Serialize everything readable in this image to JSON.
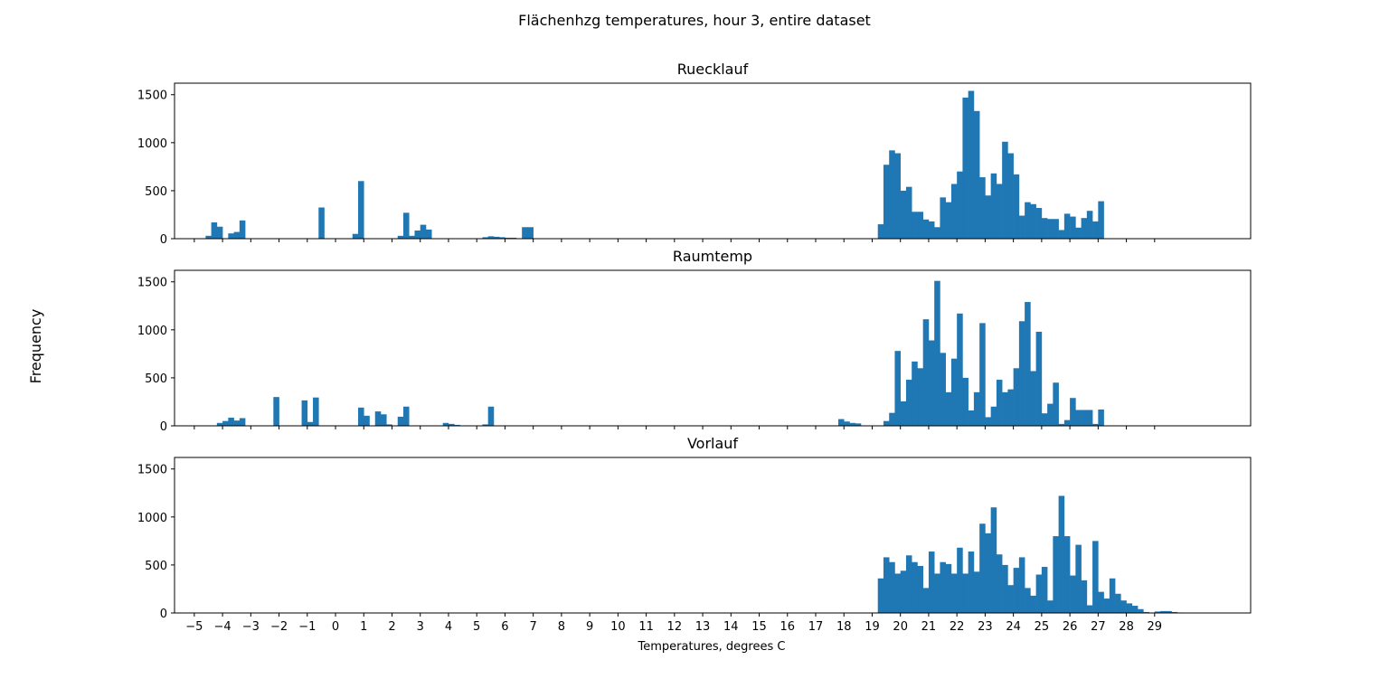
{
  "figure": {
    "suptitle": "Flächenhzg temperatures, hour 3, entire dataset",
    "ylabel": "Frequency",
    "xlabel": "Temperatures, degrees C"
  },
  "colors": {
    "bar": "#1f77b4",
    "axes": "#000000",
    "background": "#ffffff"
  },
  "chart_data": [
    {
      "type": "bar",
      "title": "Ruecklauf",
      "bin_width": 0.2,
      "xlim": [
        -5.7,
        32.4
      ],
      "ylim": [
        0,
        1620
      ],
      "yticks": [
        0,
        500,
        1000,
        1500
      ],
      "show_x_tick_labels": false,
      "bins": [
        [
          -4.6,
          30
        ],
        [
          -4.4,
          170
        ],
        [
          -4.2,
          125
        ],
        [
          -3.8,
          55
        ],
        [
          -3.6,
          70
        ],
        [
          -3.4,
          190
        ],
        [
          -0.6,
          325
        ],
        [
          0.6,
          50
        ],
        [
          0.8,
          600
        ],
        [
          2.2,
          30
        ],
        [
          2.4,
          270
        ],
        [
          2.6,
          30
        ],
        [
          2.8,
          85
        ],
        [
          3.0,
          145
        ],
        [
          3.2,
          95
        ],
        [
          5.2,
          15
        ],
        [
          5.4,
          25
        ],
        [
          5.6,
          20
        ],
        [
          5.8,
          15
        ],
        [
          6.0,
          10
        ],
        [
          6.2,
          10
        ],
        [
          6.6,
          120
        ],
        [
          6.8,
          120
        ],
        [
          19.2,
          150
        ],
        [
          19.4,
          770
        ],
        [
          19.6,
          920
        ],
        [
          19.8,
          890
        ],
        [
          20.0,
          500
        ],
        [
          20.2,
          540
        ],
        [
          20.4,
          280
        ],
        [
          20.6,
          280
        ],
        [
          20.8,
          200
        ],
        [
          21.0,
          180
        ],
        [
          21.2,
          120
        ],
        [
          21.4,
          430
        ],
        [
          21.6,
          380
        ],
        [
          21.8,
          570
        ],
        [
          22.0,
          700
        ],
        [
          22.2,
          1470
        ],
        [
          22.4,
          1540
        ],
        [
          22.6,
          1330
        ],
        [
          22.8,
          640
        ],
        [
          23.0,
          450
        ],
        [
          23.2,
          680
        ],
        [
          23.4,
          570
        ],
        [
          23.6,
          1010
        ],
        [
          23.8,
          890
        ],
        [
          24.0,
          670
        ],
        [
          24.2,
          240
        ],
        [
          24.4,
          380
        ],
        [
          24.6,
          360
        ],
        [
          24.8,
          320
        ],
        [
          25.0,
          215
        ],
        [
          25.2,
          205
        ],
        [
          25.4,
          205
        ],
        [
          25.6,
          90
        ],
        [
          25.8,
          260
        ],
        [
          26.0,
          230
        ],
        [
          26.2,
          115
        ],
        [
          26.4,
          215
        ],
        [
          26.6,
          290
        ],
        [
          26.8,
          180
        ],
        [
          27.0,
          390
        ]
      ]
    },
    {
      "type": "bar",
      "title": "Raumtemp",
      "bin_width": 0.2,
      "xlim": [
        -5.7,
        32.4
      ],
      "ylim": [
        0,
        1620
      ],
      "yticks": [
        0,
        500,
        1000,
        1500
      ],
      "show_x_tick_labels": false,
      "bins": [
        [
          -4.2,
          30
        ],
        [
          -4.0,
          50
        ],
        [
          -3.8,
          85
        ],
        [
          -3.6,
          55
        ],
        [
          -3.4,
          80
        ],
        [
          -2.2,
          300
        ],
        [
          -1.2,
          265
        ],
        [
          -1.0,
          40
        ],
        [
          -0.8,
          295
        ],
        [
          0.8,
          190
        ],
        [
          1.0,
          105
        ],
        [
          1.4,
          150
        ],
        [
          1.6,
          120
        ],
        [
          1.8,
          15
        ],
        [
          2.2,
          95
        ],
        [
          2.4,
          200
        ],
        [
          3.8,
          30
        ],
        [
          4.0,
          20
        ],
        [
          4.2,
          10
        ],
        [
          5.2,
          15
        ],
        [
          5.4,
          200
        ],
        [
          17.8,
          70
        ],
        [
          18.0,
          45
        ],
        [
          18.2,
          30
        ],
        [
          18.4,
          25
        ],
        [
          19.4,
          50
        ],
        [
          19.6,
          135
        ],
        [
          19.8,
          780
        ],
        [
          20.0,
          255
        ],
        [
          20.2,
          480
        ],
        [
          20.4,
          670
        ],
        [
          20.6,
          600
        ],
        [
          20.8,
          1110
        ],
        [
          21.0,
          890
        ],
        [
          21.2,
          1510
        ],
        [
          21.4,
          760
        ],
        [
          21.6,
          350
        ],
        [
          21.8,
          700
        ],
        [
          22.0,
          1170
        ],
        [
          22.2,
          500
        ],
        [
          22.4,
          160
        ],
        [
          22.6,
          350
        ],
        [
          22.8,
          1070
        ],
        [
          23.0,
          90
        ],
        [
          23.2,
          200
        ],
        [
          23.4,
          480
        ],
        [
          23.6,
          350
        ],
        [
          23.8,
          380
        ],
        [
          24.0,
          600
        ],
        [
          24.2,
          1090
        ],
        [
          24.4,
          1290
        ],
        [
          24.6,
          570
        ],
        [
          24.8,
          980
        ],
        [
          25.0,
          130
        ],
        [
          25.2,
          230
        ],
        [
          25.4,
          450
        ],
        [
          25.6,
          20
        ],
        [
          25.8,
          60
        ],
        [
          26.0,
          290
        ],
        [
          26.2,
          165
        ],
        [
          26.4,
          165
        ],
        [
          26.6,
          165
        ],
        [
          26.8,
          20
        ],
        [
          27.0,
          170
        ]
      ]
    },
    {
      "type": "bar",
      "title": "Vorlauf",
      "bin_width": 0.2,
      "xlim": [
        -5.7,
        32.4
      ],
      "ylim": [
        0,
        1620
      ],
      "yticks": [
        0,
        500,
        1000,
        1500
      ],
      "show_x_tick_labels": true,
      "xticks": [
        -5,
        -4,
        -3,
        -2,
        -1,
        0,
        1,
        2,
        3,
        4,
        5,
        6,
        7,
        8,
        9,
        10,
        11,
        12,
        13,
        14,
        15,
        16,
        17,
        18,
        19,
        20,
        21,
        22,
        23,
        24,
        25,
        26,
        27,
        28,
        29
      ],
      "bins": [
        [
          19.2,
          360
        ],
        [
          19.4,
          580
        ],
        [
          19.6,
          530
        ],
        [
          19.8,
          410
        ],
        [
          20.0,
          440
        ],
        [
          20.2,
          600
        ],
        [
          20.4,
          530
        ],
        [
          20.6,
          490
        ],
        [
          20.8,
          260
        ],
        [
          21.0,
          640
        ],
        [
          21.2,
          410
        ],
        [
          21.4,
          530
        ],
        [
          21.6,
          510
        ],
        [
          21.8,
          410
        ],
        [
          22.0,
          680
        ],
        [
          22.2,
          410
        ],
        [
          22.4,
          640
        ],
        [
          22.6,
          430
        ],
        [
          22.8,
          930
        ],
        [
          23.0,
          830
        ],
        [
          23.2,
          1100
        ],
        [
          23.4,
          610
        ],
        [
          23.6,
          500
        ],
        [
          23.8,
          290
        ],
        [
          24.0,
          470
        ],
        [
          24.2,
          580
        ],
        [
          24.4,
          260
        ],
        [
          24.6,
          180
        ],
        [
          24.8,
          400
        ],
        [
          25.0,
          480
        ],
        [
          25.2,
          130
        ],
        [
          25.4,
          800
        ],
        [
          25.6,
          1220
        ],
        [
          25.8,
          800
        ],
        [
          26.0,
          390
        ],
        [
          26.2,
          710
        ],
        [
          26.4,
          340
        ],
        [
          26.6,
          80
        ],
        [
          26.8,
          750
        ],
        [
          27.0,
          220
        ],
        [
          27.2,
          150
        ],
        [
          27.4,
          360
        ],
        [
          27.6,
          200
        ],
        [
          27.8,
          130
        ],
        [
          28.0,
          100
        ],
        [
          28.2,
          75
        ],
        [
          28.4,
          40
        ],
        [
          28.6,
          10
        ],
        [
          28.8,
          5
        ],
        [
          29.0,
          15
        ],
        [
          29.2,
          20
        ],
        [
          29.4,
          20
        ],
        [
          29.6,
          10
        ],
        [
          29.8,
          5
        ]
      ]
    }
  ]
}
